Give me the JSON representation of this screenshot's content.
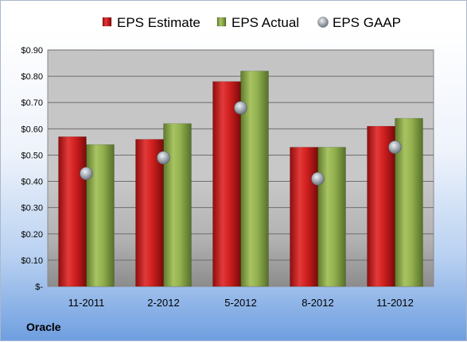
{
  "chart_data": {
    "type": "bar",
    "categories": [
      "11-2011",
      "2-2012",
      "5-2012",
      "8-2012",
      "11-2012"
    ],
    "series": [
      {
        "name": "EPS Estimate",
        "kind": "bar",
        "color": "#cc1f1f",
        "values": [
          0.57,
          0.56,
          0.78,
          0.53,
          0.61
        ]
      },
      {
        "name": "EPS Actual",
        "kind": "bar",
        "color": "#8fad4a",
        "values": [
          0.54,
          0.62,
          0.82,
          0.53,
          0.64
        ]
      },
      {
        "name": "EPS GAAP",
        "kind": "marker",
        "color": "#9aa3ab",
        "values": [
          0.43,
          0.49,
          0.68,
          0.41,
          0.53
        ]
      }
    ],
    "ylim": [
      0,
      0.9
    ],
    "yticks": [
      0,
      0.1,
      0.2,
      0.3,
      0.4,
      0.5,
      0.6,
      0.7,
      0.8,
      0.9
    ],
    "ytick_labels": [
      "$-",
      "$0.10",
      "$0.20",
      "$0.30",
      "$0.40",
      "$0.50",
      "$0.60",
      "$0.70",
      "$0.80",
      "$0.90"
    ],
    "grid": true,
    "legend_position": "top",
    "annotation": "Oracle"
  }
}
